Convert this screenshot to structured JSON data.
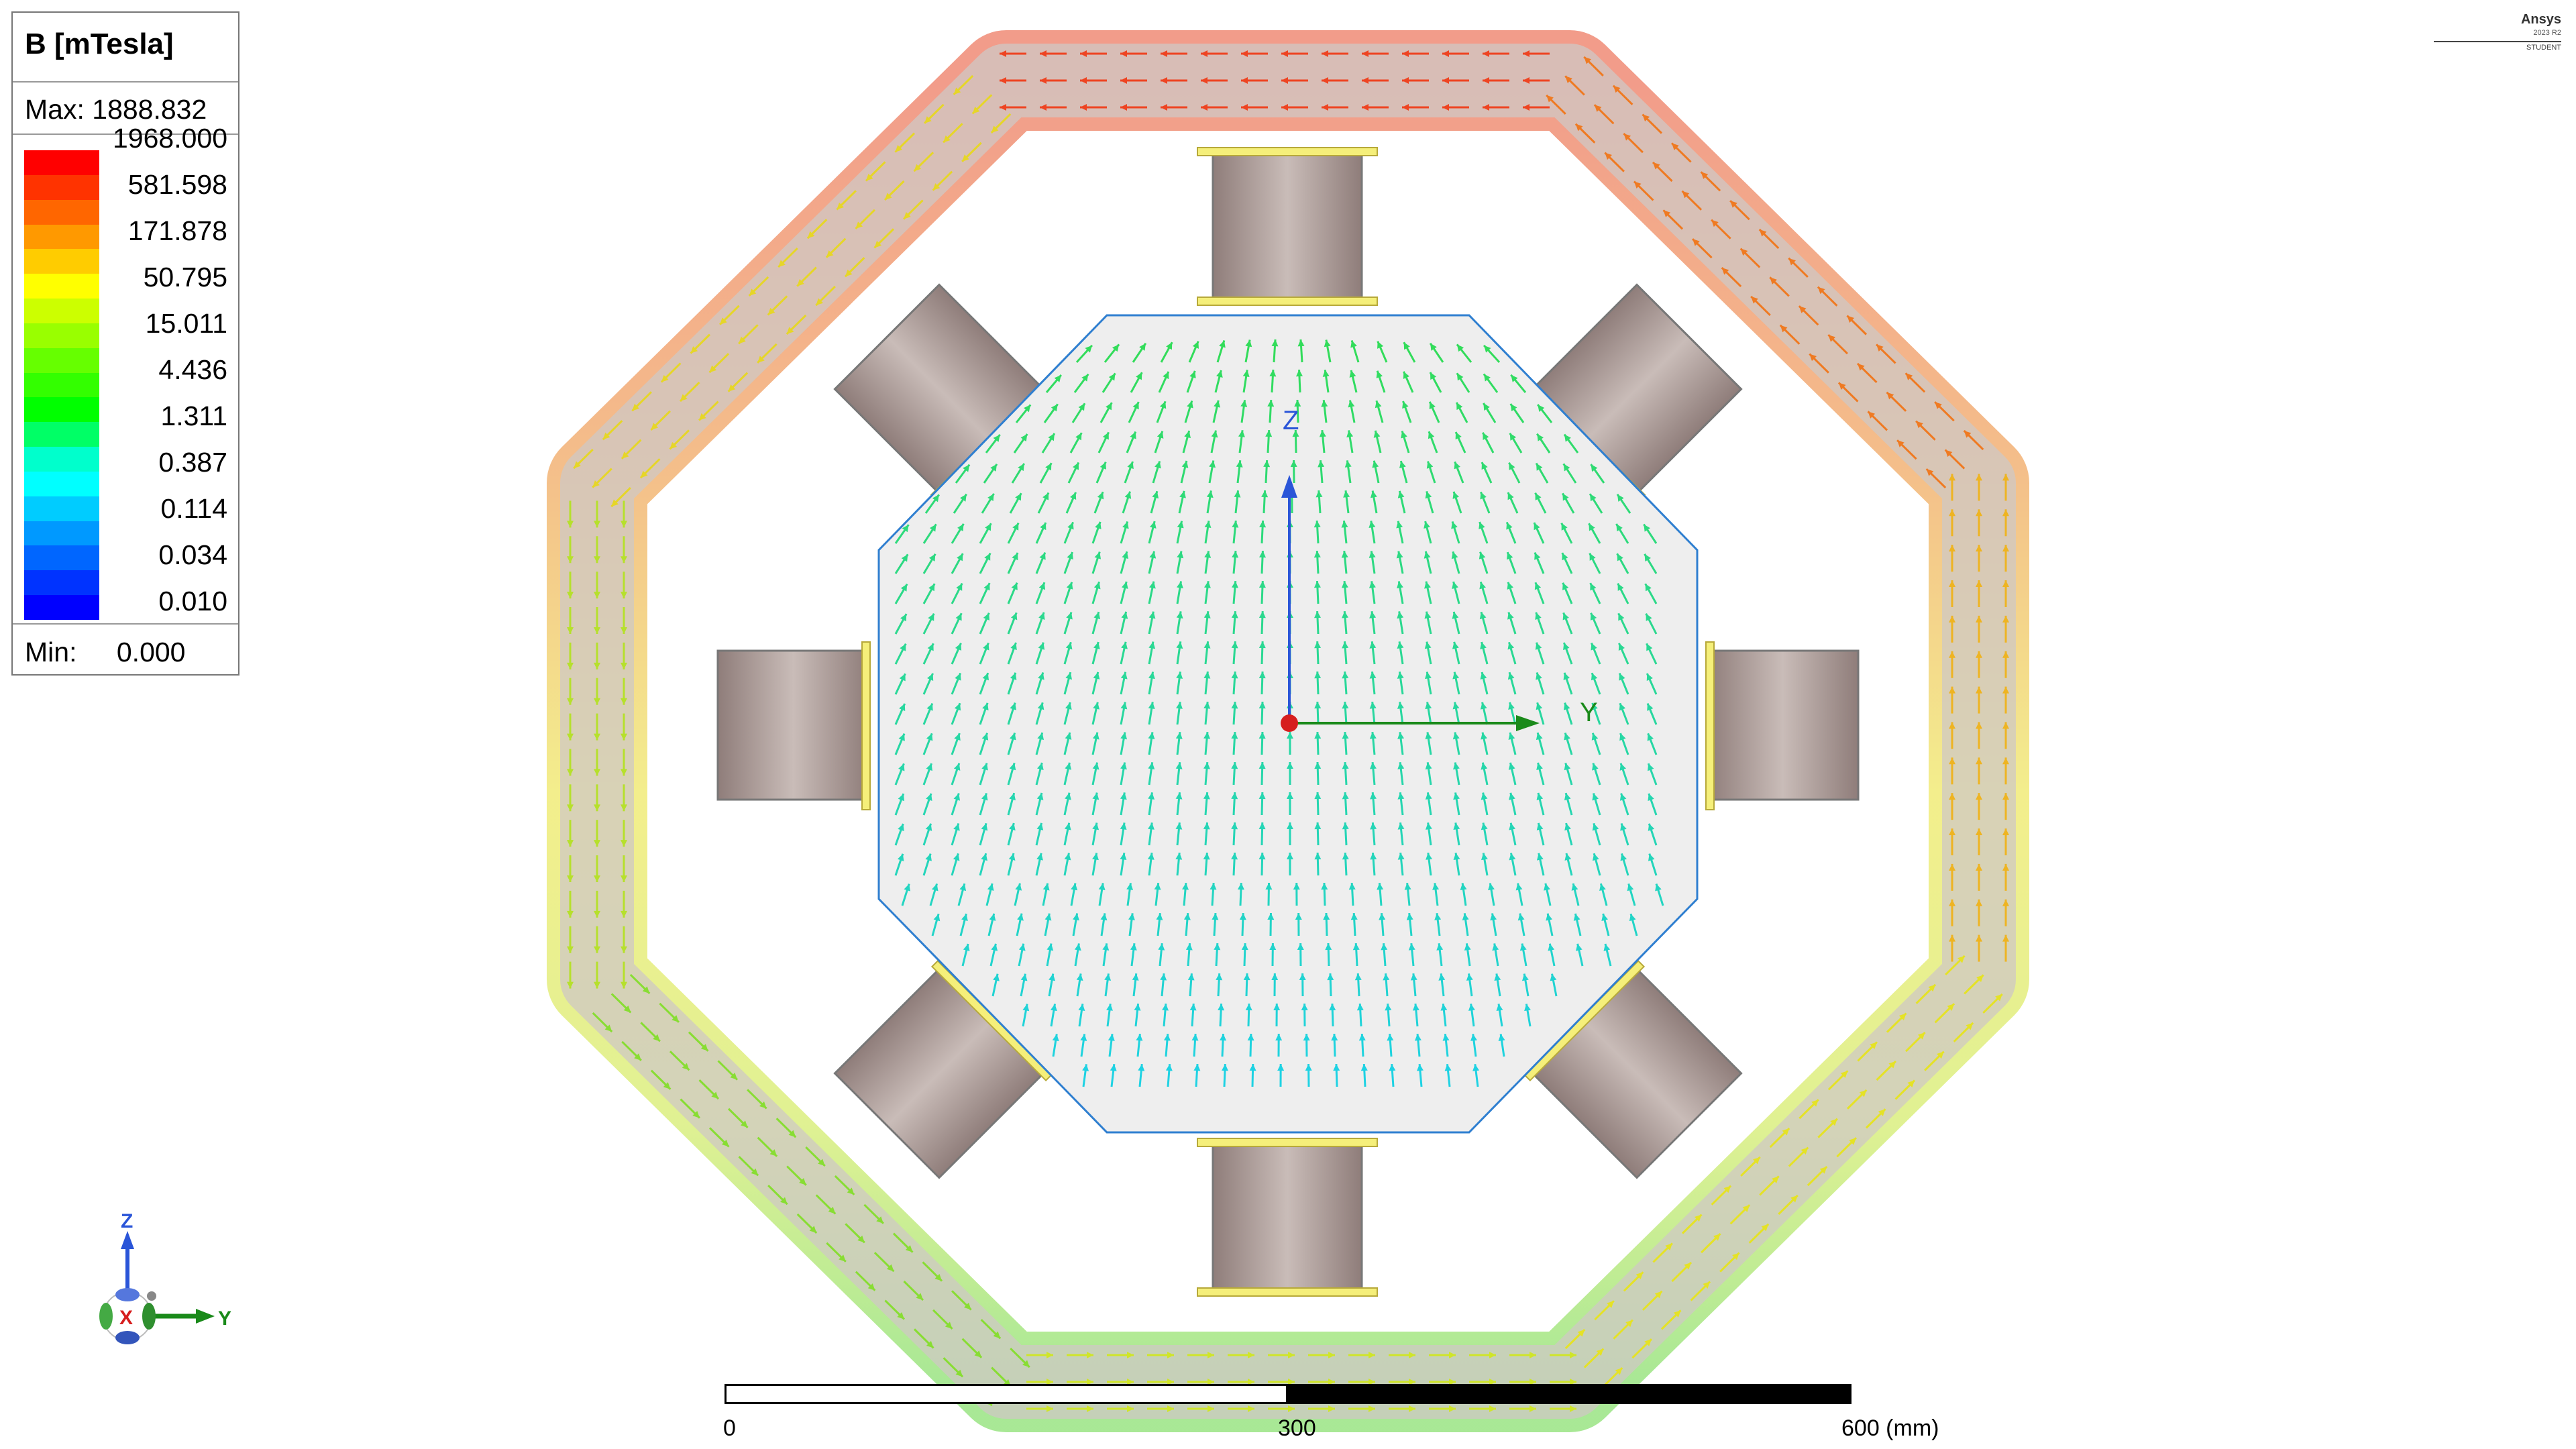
{
  "legend": {
    "title": "B [mTesla]",
    "max_label": "Max:",
    "max_value": "1888.832",
    "min_label": "Min:",
    "min_value": "0.000",
    "ticks": [
      "1968.000",
      "581.598",
      "171.878",
      "50.795",
      "15.011",
      "4.436",
      "1.311",
      "0.387",
      "0.114",
      "0.034",
      "0.010"
    ],
    "colors": [
      "#ff0000",
      "#ff3300",
      "#ff6600",
      "#ff9900",
      "#ffcc00",
      "#ffff00",
      "#ccff00",
      "#99ff00",
      "#66ff00",
      "#33ff00",
      "#00ff00",
      "#00ff66",
      "#00ffcc",
      "#00ffff",
      "#00ccff",
      "#0099ff",
      "#0066ff",
      "#0033ff",
      "#0000ff"
    ]
  },
  "brand": {
    "name": "Ansys",
    "version": "2023 R2",
    "edition": "STUDENT"
  },
  "scale_bar": {
    "labels": [
      "0",
      "300",
      "600 (mm)"
    ]
  },
  "axes": {
    "main_z": "Z",
    "main_y": "Y",
    "triad_z": "Z",
    "triad_y": "Y",
    "triad_x": "X"
  }
}
